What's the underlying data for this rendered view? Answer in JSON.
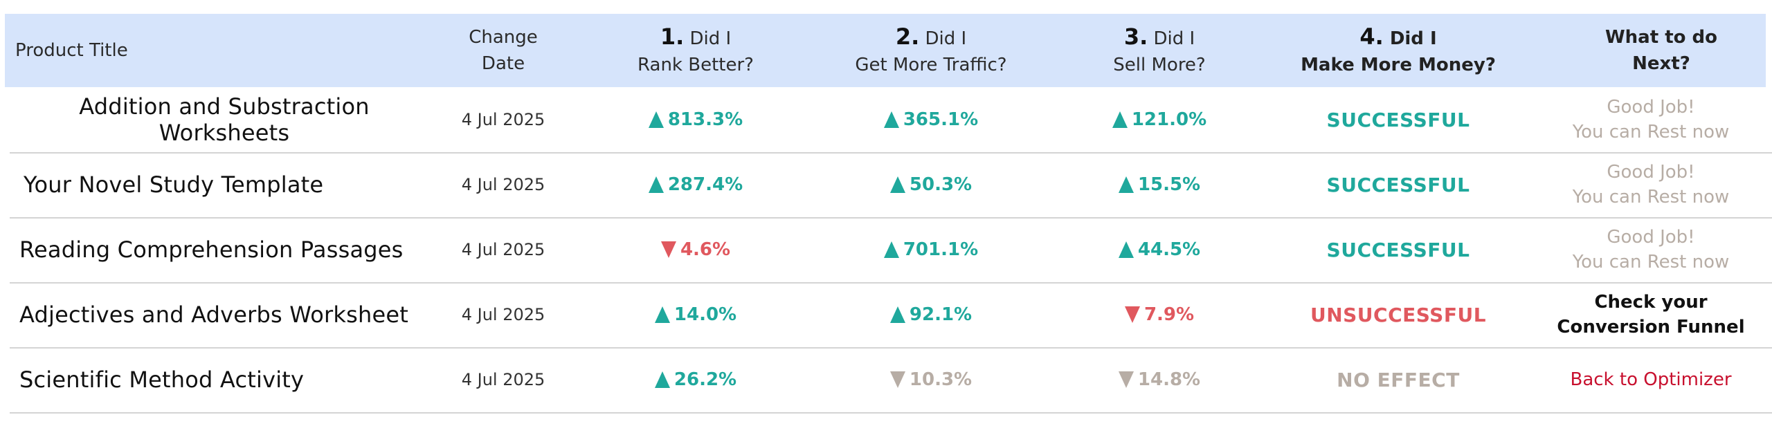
{
  "colors": {
    "header_bg": "#d6e4fb",
    "positive": "#1fa89c",
    "negative": "#e0585e",
    "neutral": "#b7ada5",
    "successful": "#1fa89c",
    "unsuccessful": "#e0585e",
    "no_effect": "#b7ada5",
    "next_rest": "#b7ada5",
    "next_funnel": "#111111",
    "next_optimizer": "#c8102e"
  },
  "header": {
    "product_title": "Product Title",
    "change_date_line1": "Change",
    "change_date_line2": "Date",
    "rank_num": "1.",
    "rank_line1": "Did I",
    "rank_line2": "Rank Better?",
    "traffic_num": "2.",
    "traffic_line1": "Did I",
    "traffic_line2": "Get More Traffic?",
    "sell_num": "3.",
    "sell_line1": "Did I",
    "sell_line2": "Sell More?",
    "money_num": "4.",
    "money_line1": "Did I",
    "money_line2": "Make More Money?",
    "next_line1": "What to do",
    "next_line2": "Next?"
  },
  "rows": [
    {
      "title": "Addition and Substraction Worksheets",
      "date": "4 Jul 2025",
      "rank": {
        "value": "813.3%",
        "dir": "up",
        "tone": "positive"
      },
      "traffic": {
        "value": "365.1%",
        "dir": "up",
        "tone": "positive"
      },
      "sell": {
        "value": "121.0%",
        "dir": "up",
        "tone": "positive"
      },
      "result": {
        "label": "SUCCESSFUL",
        "tone": "successful"
      },
      "next": {
        "text": "Good Job!\nYou can Rest now",
        "tone": "next_rest",
        "bold": false
      }
    },
    {
      "title": "Your Novel Study Template",
      "date": "4 Jul 2025",
      "rank": {
        "value": "287.4%",
        "dir": "up",
        "tone": "positive"
      },
      "traffic": {
        "value": "50.3%",
        "dir": "up",
        "tone": "positive"
      },
      "sell": {
        "value": "15.5%",
        "dir": "up",
        "tone": "positive"
      },
      "result": {
        "label": "SUCCESSFUL",
        "tone": "successful"
      },
      "next": {
        "text": "Good Job!\nYou can Rest now",
        "tone": "next_rest",
        "bold": false
      }
    },
    {
      "title": "Reading Comprehension Passages",
      "date": "4 Jul 2025",
      "rank": {
        "value": "4.6%",
        "dir": "down",
        "tone": "negative"
      },
      "traffic": {
        "value": "701.1%",
        "dir": "up",
        "tone": "positive"
      },
      "sell": {
        "value": "44.5%",
        "dir": "up",
        "tone": "positive"
      },
      "result": {
        "label": "SUCCESSFUL",
        "tone": "successful"
      },
      "next": {
        "text": "Good Job!\nYou can Rest now",
        "tone": "next_rest",
        "bold": false
      }
    },
    {
      "title": "Adjectives and Adverbs Worksheet",
      "date": "4 Jul 2025",
      "rank": {
        "value": "14.0%",
        "dir": "up",
        "tone": "positive"
      },
      "traffic": {
        "value": "92.1%",
        "dir": "up",
        "tone": "positive"
      },
      "sell": {
        "value": "7.9%",
        "dir": "down",
        "tone": "negative"
      },
      "result": {
        "label": "UNSUCCESSFUL",
        "tone": "unsuccessful"
      },
      "next": {
        "text": "Check your\nConversion Funnel",
        "tone": "next_funnel",
        "bold": true
      }
    },
    {
      "title": "Scientific Method Activity",
      "date": "4 Jul 2025",
      "rank": {
        "value": "26.2%",
        "dir": "up",
        "tone": "positive"
      },
      "traffic": {
        "value": "10.3%",
        "dir": "down",
        "tone": "neutral"
      },
      "sell": {
        "value": "14.8%",
        "dir": "down",
        "tone": "neutral"
      },
      "result": {
        "label": "NO EFFECT",
        "tone": "no_effect"
      },
      "next": {
        "text": "Back to Optimizer",
        "tone": "next_optimizer",
        "bold": false
      }
    }
  ]
}
